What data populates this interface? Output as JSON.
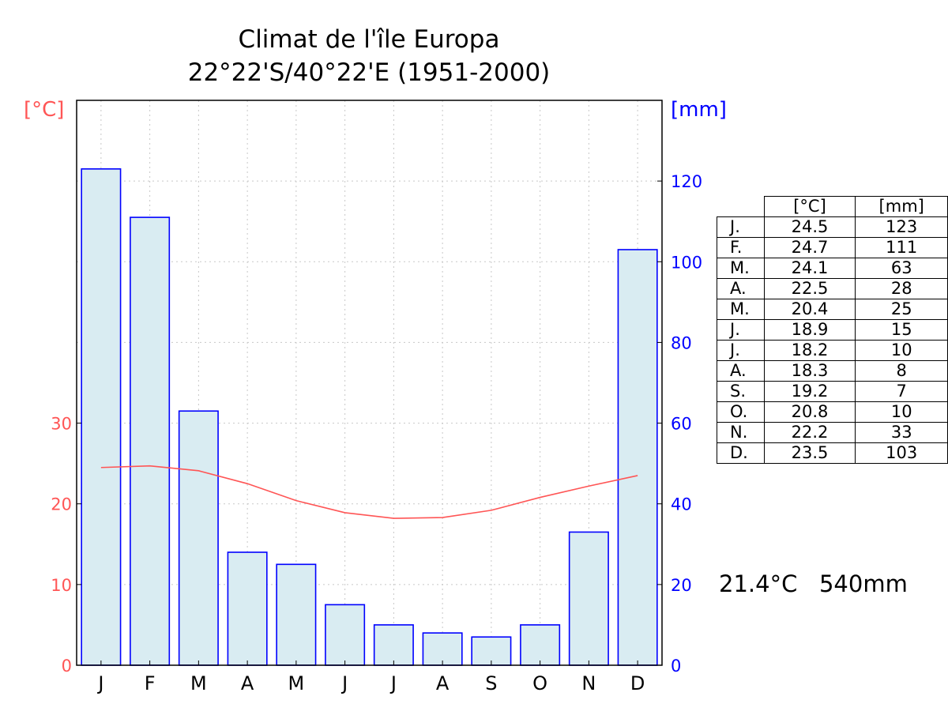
{
  "chart_data": {
    "type": "bar",
    "title": "Climat de l'île Europa",
    "subtitle": "22°22'S/40°22'E (1951-2000)",
    "categories": [
      "J",
      "F",
      "M",
      "A",
      "M",
      "J",
      "J",
      "A",
      "S",
      "O",
      "N",
      "D"
    ],
    "series": [
      {
        "type": "bar",
        "axis": "right",
        "values": [
          123,
          111,
          63,
          28,
          25,
          15,
          10,
          8,
          7,
          10,
          33,
          103
        ]
      },
      {
        "type": "line",
        "axis": "left",
        "values": [
          24.5,
          24.7,
          24.1,
          22.5,
          20.4,
          18.9,
          18.2,
          18.3,
          19.2,
          20.8,
          22.2,
          23.5
        ]
      }
    ],
    "y_left": {
      "label": "[°C]",
      "ticks": [
        0,
        10,
        20,
        30
      ],
      "range": [
        0,
        70
      ]
    },
    "y_right": {
      "label": "[mm]",
      "ticks": [
        0,
        20,
        40,
        60,
        80,
        100,
        120
      ],
      "range": [
        0,
        140
      ]
    },
    "grid": true,
    "colors": {
      "temperature": "#ff5555",
      "precipitation": "#0000ff",
      "bar_fill": "#d9ecf2"
    }
  },
  "table": {
    "headers": [
      "[°C]",
      "[mm]"
    ],
    "rows": [
      {
        "month": "J.",
        "temp": "24.5",
        "precip": "123"
      },
      {
        "month": "F.",
        "temp": "24.7",
        "precip": "111"
      },
      {
        "month": "M.",
        "temp": "24.1",
        "precip": "63"
      },
      {
        "month": "A.",
        "temp": "22.5",
        "precip": "28"
      },
      {
        "month": "M.",
        "temp": "20.4",
        "precip": "25"
      },
      {
        "month": "J.",
        "temp": "18.9",
        "precip": "15"
      },
      {
        "month": "J.",
        "temp": "18.2",
        "precip": "10"
      },
      {
        "month": "A.",
        "temp": "18.3",
        "precip": "8"
      },
      {
        "month": "S.",
        "temp": "19.2",
        "precip": "7"
      },
      {
        "month": "O.",
        "temp": "20.8",
        "precip": "10"
      },
      {
        "month": "N.",
        "temp": "22.2",
        "precip": "33"
      },
      {
        "month": "D.",
        "temp": "23.5",
        "precip": "103"
      }
    ]
  },
  "summary": {
    "mean_temp": "21.4°C",
    "total_precip": "540mm"
  }
}
